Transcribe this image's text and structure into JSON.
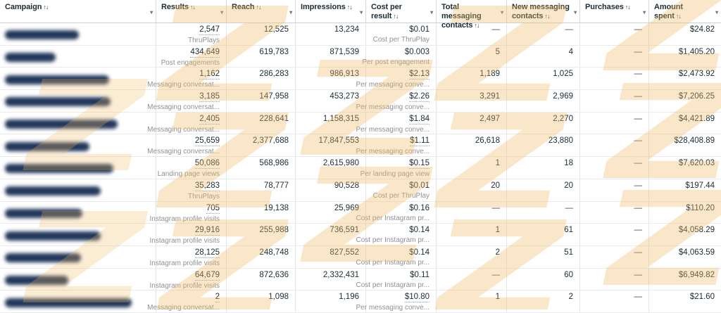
{
  "watermark_color": "#f2bc63",
  "table": {
    "columns": [
      {
        "key": "campaign",
        "label": "Campaign",
        "sort": "↑↓",
        "caret": "▾"
      },
      {
        "key": "results",
        "label": "Results",
        "sort": "↑↓",
        "caret": "▾"
      },
      {
        "key": "reach",
        "label": "Reach",
        "sort": "↑↓",
        "caret": "▾"
      },
      {
        "key": "impressions",
        "label": "Impressions",
        "sort": "↑↓",
        "caret": "▾"
      },
      {
        "key": "cost-per-result",
        "label": "Cost per result",
        "sort": "↑↓",
        "caret": "▾"
      },
      {
        "key": "total-messaging-contacts",
        "label": "Total messaging contacts",
        "sort": "↑↓",
        "caret": "▾"
      },
      {
        "key": "new-messaging-contacts",
        "label": "New messaging contacts",
        "sort": "↑↓",
        "caret": "▾"
      },
      {
        "key": "purchases",
        "label": "Purchases",
        "sort": "↑↓",
        "caret": "▾"
      },
      {
        "key": "amount-spent",
        "label": "Amount spent",
        "sort": "↑↓",
        "caret": "▾"
      }
    ],
    "rows": [
      {
        "results": "2,547",
        "results_label": "ThruPlays",
        "reach": "12,525",
        "impressions": "13,234",
        "cost": "$0.01",
        "cost_label": "Cost per ThruPlay",
        "cost_link": false,
        "total_contacts": "—",
        "new_contacts": "—",
        "purchases": "—",
        "spent": "$24.82"
      },
      {
        "results": "434,649",
        "results_label": "Post engagements",
        "reach": "619,783",
        "impressions": "871,539",
        "cost": "$0.003",
        "cost_label": "Per post engagement",
        "cost_link": false,
        "total_contacts": "5",
        "new_contacts": "4",
        "purchases": "—",
        "spent": "$1,405.20"
      },
      {
        "results": "1,162",
        "results_label": "Messaging conversat...",
        "reach": "286,283",
        "impressions": "986,913",
        "cost": "$2.13",
        "cost_label": "Per messaging conve...",
        "cost_link": true,
        "total_contacts": "1,189",
        "new_contacts": "1,025",
        "purchases": "—",
        "spent": "$2,473.92"
      },
      {
        "results": "3,185",
        "results_label": "Messaging conversat...",
        "reach": "147,958",
        "impressions": "453,273",
        "cost": "$2.26",
        "cost_label": "Per messaging conve...",
        "cost_link": true,
        "total_contacts": "3,291",
        "new_contacts": "2,969",
        "purchases": "—",
        "spent": "$7,206.25"
      },
      {
        "results": "2,405",
        "results_label": "Messaging conversat...",
        "reach": "228,641",
        "impressions": "1,158,315",
        "cost": "$1.84",
        "cost_label": "Per messaging conve...",
        "cost_link": true,
        "total_contacts": "2,497",
        "new_contacts": "2,270",
        "purchases": "—",
        "spent": "$4,421.89"
      },
      {
        "results": "25,659",
        "results_label": "Messaging conversat...",
        "reach": "2,377,688",
        "impressions": "17,847,553",
        "cost": "$1.11",
        "cost_label": "Per messaging conve...",
        "cost_link": true,
        "total_contacts": "26,618",
        "new_contacts": "23,880",
        "purchases": "—",
        "spent": "$28,408.89"
      },
      {
        "results": "50,086",
        "results_label": "Landing page views",
        "reach": "568,986",
        "impressions": "2,615,980",
        "cost": "$0.15",
        "cost_label": "Per landing page view",
        "cost_link": true,
        "total_contacts": "1",
        "new_contacts": "18",
        "purchases": "—",
        "spent": "$7,620.03"
      },
      {
        "results": "35,283",
        "results_label": "ThruPlays",
        "reach": "78,777",
        "impressions": "90,528",
        "cost": "$0.01",
        "cost_label": "Cost per ThruPlay",
        "cost_link": false,
        "total_contacts": "20",
        "new_contacts": "20",
        "purchases": "—",
        "spent": "$197.44"
      },
      {
        "results": "705",
        "results_label": "Instagram profile visits",
        "reach": "19,138",
        "impressions": "25,969",
        "cost": "$0.16",
        "cost_label": "Cost per Instagram pr...",
        "cost_link": false,
        "total_contacts": "—",
        "new_contacts": "—",
        "purchases": "—",
        "spent": "$110.20"
      },
      {
        "results": "29,916",
        "results_label": "Instagram profile visits",
        "reach": "255,988",
        "impressions": "736,591",
        "cost": "$0.14",
        "cost_label": "Cost per Instagram pr...",
        "cost_link": false,
        "total_contacts": "1",
        "new_contacts": "61",
        "purchases": "—",
        "spent": "$4,058.29"
      },
      {
        "results": "28,125",
        "results_label": "Instagram profile visits",
        "reach": "248,748",
        "impressions": "827,552",
        "cost": "$0.14",
        "cost_label": "Cost per Instagram pr...",
        "cost_link": false,
        "total_contacts": "2",
        "new_contacts": "51",
        "purchases": "—",
        "spent": "$4,063.59"
      },
      {
        "results": "64,679",
        "results_label": "Instagram profile visits",
        "reach": "872,636",
        "impressions": "2,332,431",
        "cost": "$0.11",
        "cost_label": "Cost per Instagram pr...",
        "cost_link": false,
        "total_contacts": "—",
        "new_contacts": "60",
        "purchases": "—",
        "spent": "$6,949.82"
      },
      {
        "results": "2",
        "results_label": "Messaging conversat...",
        "reach": "1,098",
        "impressions": "1,196",
        "cost": "$10.80",
        "cost_label": "Per messaging conve...",
        "cost_link": true,
        "total_contacts": "1",
        "new_contacts": "2",
        "purchases": "—",
        "spent": "$21.60"
      }
    ]
  }
}
